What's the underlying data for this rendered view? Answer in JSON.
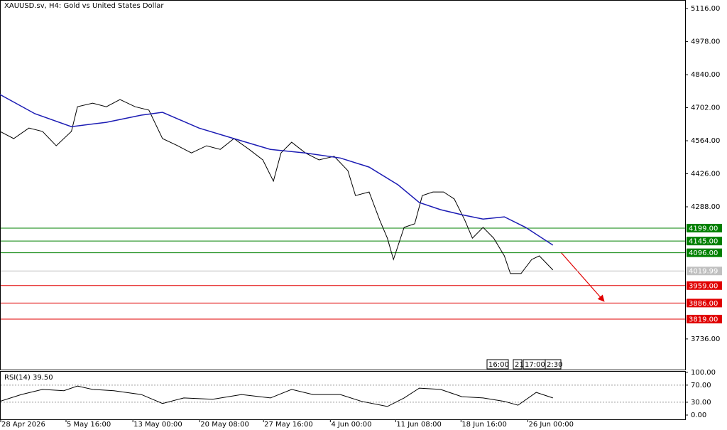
{
  "chart_data": [
    {
      "type": "line",
      "title": "XAUUSD.sv, H4:  Gold vs United States Dollar",
      "xlim": [
        0,
        451
      ],
      "ylim": [
        3608,
        5152
      ],
      "yticks": [
        {
          "value": 5116,
          "label": "5116.00"
        },
        {
          "value": 4978,
          "label": "4978.00"
        },
        {
          "value": 4840,
          "label": "4840.00"
        },
        {
          "value": 4702,
          "label": "4702.00"
        },
        {
          "value": 4564,
          "label": "4564.00"
        },
        {
          "value": 4426,
          "label": "4426.00"
        },
        {
          "value": 4288,
          "label": "4288.00"
        },
        {
          "value": 3736,
          "label": "3736.00"
        }
      ],
      "series": [
        {
          "color": "#000000",
          "x": [
            0,
            9,
            19,
            28,
            37,
            47,
            51,
            61,
            70,
            79,
            89,
            98,
            107,
            117,
            126,
            136,
            145,
            154,
            164,
            173,
            180,
            185,
            192,
            201,
            210,
            220,
            229,
            234,
            243,
            250,
            255,
            259,
            266,
            273,
            278,
            285,
            292,
            299,
            306,
            311,
            318,
            325,
            332,
            336,
            343,
            350,
            355,
            364
          ],
          "values": [
            4603,
            4573,
            4617,
            4603,
            4543,
            4603,
            4706,
            4721,
            4706,
            4736,
            4706,
            4692,
            4573,
            4543,
            4513,
            4543,
            4528,
            4573,
            4528,
            4484,
            4395,
            4513,
            4558,
            4513,
            4484,
            4499,
            4439,
            4335,
            4350,
            4232,
            4157,
            4068,
            4202,
            4217,
            4335,
            4350,
            4350,
            4321,
            4232,
            4157,
            4202,
            4157,
            4083,
            4009,
            4009,
            4068,
            4083,
            4024
          ]
        },
        {
          "color": "#1c1cb4",
          "x": [
            0,
            23,
            47,
            70,
            93,
            107,
            131,
            154,
            178,
            201,
            224,
            243,
            262,
            276,
            290,
            304,
            318,
            332,
            346,
            364
          ],
          "values": [
            4757,
            4677,
            4623,
            4641,
            4671,
            4683,
            4617,
            4573,
            4528,
            4513,
            4492,
            4454,
            4380,
            4306,
            4276,
            4255,
            4237,
            4246,
            4202,
            4128
          ]
        }
      ],
      "levels": [
        {
          "value": 4199,
          "label": "4199.00",
          "color": "#008000"
        },
        {
          "value": 4145,
          "label": "4145.00",
          "color": "#008000"
        },
        {
          "value": 4096,
          "label": "4096.00",
          "color": "#008000"
        },
        {
          "value": 4019.99,
          "label": "4019.99",
          "color": "#c0c0c0"
        },
        {
          "value": 3959,
          "label": "3959.00",
          "color": "#e00000"
        },
        {
          "value": 3886,
          "label": "3886.00",
          "color": "#e00000"
        },
        {
          "value": 3819,
          "label": "3819.00",
          "color": "#e00000"
        }
      ],
      "annotations": [
        "16:00",
        "21",
        "17:00",
        "2:30"
      ]
    },
    {
      "type": "line",
      "title": "RSI(14) 39.50",
      "xlim": [
        0,
        451
      ],
      "ylim": [
        -10,
        103
      ],
      "yticks": [
        {
          "value": 100,
          "label": "100.00"
        },
        {
          "value": 70,
          "label": "70.00"
        },
        {
          "value": 30,
          "label": "30.00"
        },
        {
          "value": 0,
          "label": "0.00"
        }
      ],
      "levels": [
        70,
        30
      ],
      "xticks": [
        {
          "value": 0,
          "label": "28 Apr 2026"
        },
        {
          "value": 43,
          "label": "5 May 16:00"
        },
        {
          "value": 87,
          "label": "13 May 00:00"
        },
        {
          "value": 131,
          "label": "20 May 08:00"
        },
        {
          "value": 173,
          "label": "27 May 16:00"
        },
        {
          "value": 217,
          "label": "4 Jun 00:00"
        },
        {
          "value": 260,
          "label": "11 Jun 08:00"
        },
        {
          "value": 303,
          "label": "18 Jun 16:00"
        },
        {
          "value": 347,
          "label": "26 Jun 00:00"
        }
      ],
      "series": [
        {
          "color": "#000000",
          "x": [
            0,
            14,
            28,
            42,
            51,
            61,
            75,
            93,
            107,
            121,
            140,
            159,
            178,
            192,
            206,
            224,
            238,
            255,
            266,
            276,
            290,
            304,
            318,
            332,
            341,
            353,
            364
          ],
          "values": [
            32,
            48,
            60,
            57,
            68,
            60,
            57,
            48,
            27,
            40,
            37,
            48,
            40,
            60,
            48,
            48,
            32,
            20,
            40,
            63,
            60,
            43,
            40,
            32,
            23,
            53,
            40
          ]
        }
      ]
    }
  ]
}
